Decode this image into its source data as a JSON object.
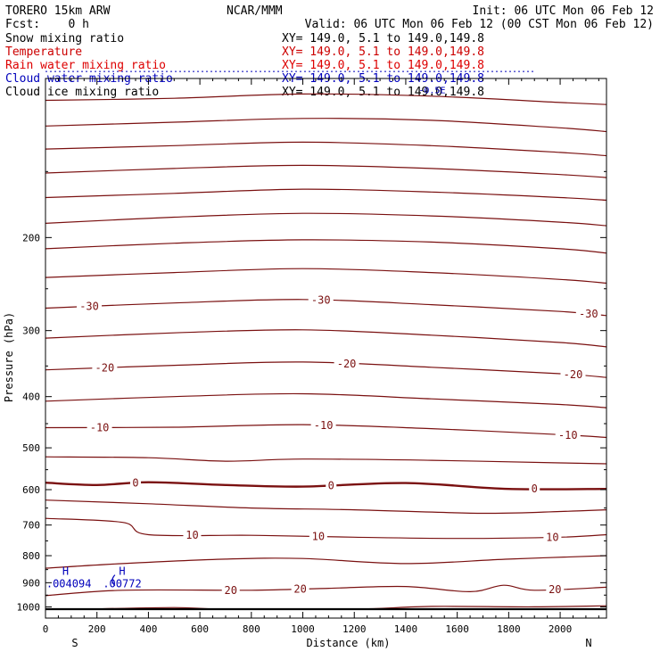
{
  "header": {
    "model": "TORERO  15km ARW",
    "org": "NCAR/MMM",
    "init": "Init: 06 UTC Mon 06 Feb 12",
    "fcst": "Fcst:    0 h",
    "valid": "Valid: 06 UTC Mon 06 Feb 12 (00 CST Mon 06 Feb 12)"
  },
  "legend": [
    {
      "label": "Snow mixing ratio",
      "xy": "XY= 149.0,  5.1 to 149.0,149.8",
      "color": "#000000"
    },
    {
      "label": "Temperature",
      "xy": "XY= 149.0,  5.1 to 149.0,149.8",
      "color": "#cc0000"
    },
    {
      "label": "Rain water mixing ratio",
      "xy": "XY= 149.0,  5.1 to 149.0,149.8",
      "color": "#dd0000"
    },
    {
      "label": "Cloud water mixing ratio",
      "xy": "XY= 149.0,  5.1 to 149.0,149.8",
      "color": "#0000bb"
    },
    {
      "label": "Cloud ice mixing ratio",
      "xy": "XY= 149.0,  5.1 to 149.0,149.8",
      "color": "#000000"
    }
  ],
  "colors": {
    "isotherm": "#7a1010",
    "cloud_water": "#0000bb",
    "axis": "#000000"
  },
  "chart_data": {
    "type": "contour",
    "xlabel": "Distance (km)",
    "ylabel": "Pressure (hPa)",
    "xlim": [
      0,
      2180
    ],
    "ylim": [
      1050,
      100
    ],
    "y_scale": "log",
    "x_ticks": [
      0,
      200,
      400,
      600,
      800,
      1000,
      1200,
      1400,
      1600,
      1800,
      2000
    ],
    "y_ticks": [
      200,
      300,
      400,
      500,
      600,
      700,
      800,
      900,
      1000
    ],
    "x_end_labels": {
      "left": "S",
      "right": "N"
    },
    "surface_pressure": 1010,
    "temperature_contours": [
      {
        "level": -70,
        "points": [
          [
            0,
            110
          ],
          [
            500,
            109
          ],
          [
            1000,
            107
          ],
          [
            1500,
            108
          ],
          [
            2000,
            111
          ],
          [
            2180,
            112
          ]
        ]
      },
      {
        "level": -65,
        "points": [
          [
            0,
            123
          ],
          [
            500,
            121
          ],
          [
            1000,
            119
          ],
          [
            1500,
            120
          ],
          [
            2000,
            124
          ],
          [
            2180,
            126
          ]
        ]
      },
      {
        "level": -60,
        "points": [
          [
            0,
            136
          ],
          [
            500,
            134
          ],
          [
            1000,
            132
          ],
          [
            1500,
            134
          ],
          [
            2000,
            138
          ],
          [
            2180,
            140
          ]
        ]
      },
      {
        "level": -55,
        "points": [
          [
            0,
            151
          ],
          [
            500,
            148
          ],
          [
            1000,
            146
          ],
          [
            1500,
            148
          ],
          [
            2000,
            152
          ],
          [
            2180,
            154
          ]
        ]
      },
      {
        "level": -50,
        "points": [
          [
            0,
            168
          ],
          [
            500,
            165
          ],
          [
            1000,
            162
          ],
          [
            1500,
            164
          ],
          [
            2000,
            168
          ],
          [
            2180,
            170
          ]
        ]
      },
      {
        "level": -45,
        "points": [
          [
            0,
            188
          ],
          [
            500,
            183
          ],
          [
            1000,
            180
          ],
          [
            1500,
            182
          ],
          [
            2000,
            187
          ],
          [
            2180,
            190
          ]
        ]
      },
      {
        "level": -40,
        "points": [
          [
            0,
            210
          ],
          [
            500,
            205
          ],
          [
            1000,
            202
          ],
          [
            1500,
            204
          ],
          [
            2000,
            210
          ],
          [
            2180,
            214
          ]
        ]
      },
      {
        "level": -35,
        "points": [
          [
            0,
            238
          ],
          [
            500,
            233
          ],
          [
            1000,
            229
          ],
          [
            1500,
            233
          ],
          [
            2000,
            240
          ],
          [
            2180,
            244
          ]
        ]
      },
      {
        "level": -30,
        "points": [
          [
            0,
            272
          ],
          [
            500,
            266
          ],
          [
            1000,
            262
          ],
          [
            1500,
            268
          ],
          [
            2000,
            276
          ],
          [
            2180,
            281
          ]
        ],
        "label_x": [
          170,
          1070,
          2110
        ]
      },
      {
        "level": -25,
        "points": [
          [
            0,
            310
          ],
          [
            500,
            303
          ],
          [
            1000,
            299
          ],
          [
            1500,
            306
          ],
          [
            2000,
            316
          ],
          [
            2180,
            322
          ]
        ]
      },
      {
        "level": -20,
        "points": [
          [
            0,
            356
          ],
          [
            500,
            349
          ],
          [
            1000,
            344
          ],
          [
            1500,
            352
          ],
          [
            2000,
            362
          ],
          [
            2180,
            368
          ]
        ],
        "label_x": [
          230,
          1170,
          2050
        ]
      },
      {
        "level": -15,
        "points": [
          [
            0,
            408
          ],
          [
            500,
            400
          ],
          [
            1000,
            395
          ],
          [
            1500,
            404
          ],
          [
            2000,
            414
          ],
          [
            2180,
            420
          ]
        ]
      },
      {
        "level": -10,
        "points": [
          [
            0,
            458
          ],
          [
            500,
            457
          ],
          [
            1000,
            452
          ],
          [
            1500,
            460
          ],
          [
            2000,
            472
          ],
          [
            2180,
            478
          ]
        ],
        "label_x": [
          210,
          1080,
          2030
        ]
      },
      {
        "level": -5,
        "points": [
          [
            0,
            520
          ],
          [
            400,
            522
          ],
          [
            700,
            530
          ],
          [
            1000,
            525
          ],
          [
            1500,
            528
          ],
          [
            2000,
            534
          ],
          [
            2180,
            536
          ]
        ]
      },
      {
        "level": 0,
        "points": [
          [
            0,
            582
          ],
          [
            200,
            588
          ],
          [
            400,
            581
          ],
          [
            700,
            588
          ],
          [
            1000,
            592
          ],
          [
            1400,
            583
          ],
          [
            1800,
            598
          ],
          [
            2180,
            598
          ]
        ],
        "bold": true,
        "label_x": [
          350,
          1110,
          1900
        ]
      },
      {
        "level": 5,
        "points": [
          [
            0,
            628
          ],
          [
            400,
            638
          ],
          [
            800,
            650
          ],
          [
            1200,
            655
          ],
          [
            1700,
            665
          ],
          [
            2000,
            660
          ],
          [
            2180,
            655
          ]
        ]
      },
      {
        "level": 10,
        "points": [
          [
            0,
            680
          ],
          [
            300,
            692
          ],
          [
            400,
            730
          ],
          [
            800,
            732
          ],
          [
            1200,
            738
          ],
          [
            1600,
            742
          ],
          [
            2000,
            738
          ],
          [
            2180,
            730
          ]
        ],
        "label_x": [
          570,
          1060,
          1970
        ]
      },
      {
        "level": 15,
        "points": [
          [
            0,
            845
          ],
          [
            300,
            828
          ],
          [
            700,
            812
          ],
          [
            1000,
            810
          ],
          [
            1400,
            828
          ],
          [
            1800,
            812
          ],
          [
            2180,
            800
          ]
        ]
      },
      {
        "level": 20,
        "points": [
          [
            0,
            952
          ],
          [
            300,
            930
          ],
          [
            800,
            930
          ],
          [
            1100,
            922
          ],
          [
            1400,
            915
          ],
          [
            1650,
            936
          ],
          [
            1780,
            910
          ],
          [
            1900,
            930
          ],
          [
            2180,
            918
          ]
        ],
        "label_x": [
          720,
          990,
          1980
        ]
      },
      {
        "level": 25,
        "points": [
          [
            150,
            1010
          ],
          [
            500,
            1003
          ],
          [
            700,
            1010
          ],
          [
            1200,
            1010
          ],
          [
            1500,
            998
          ],
          [
            1900,
            1000
          ],
          [
            2180,
            995
          ]
        ]
      }
    ],
    "cloud_water_extrema": [
      {
        "marker": "H",
        "value": ".004094",
        "x": 100,
        "p": 890
      },
      {
        "marker": "H",
        "value": ".00772",
        "x": 320,
        "p": 890
      }
    ],
    "cloud_water_top_label": {
      "value": "-0.5E",
      "x": 1450,
      "p": 105
    }
  }
}
